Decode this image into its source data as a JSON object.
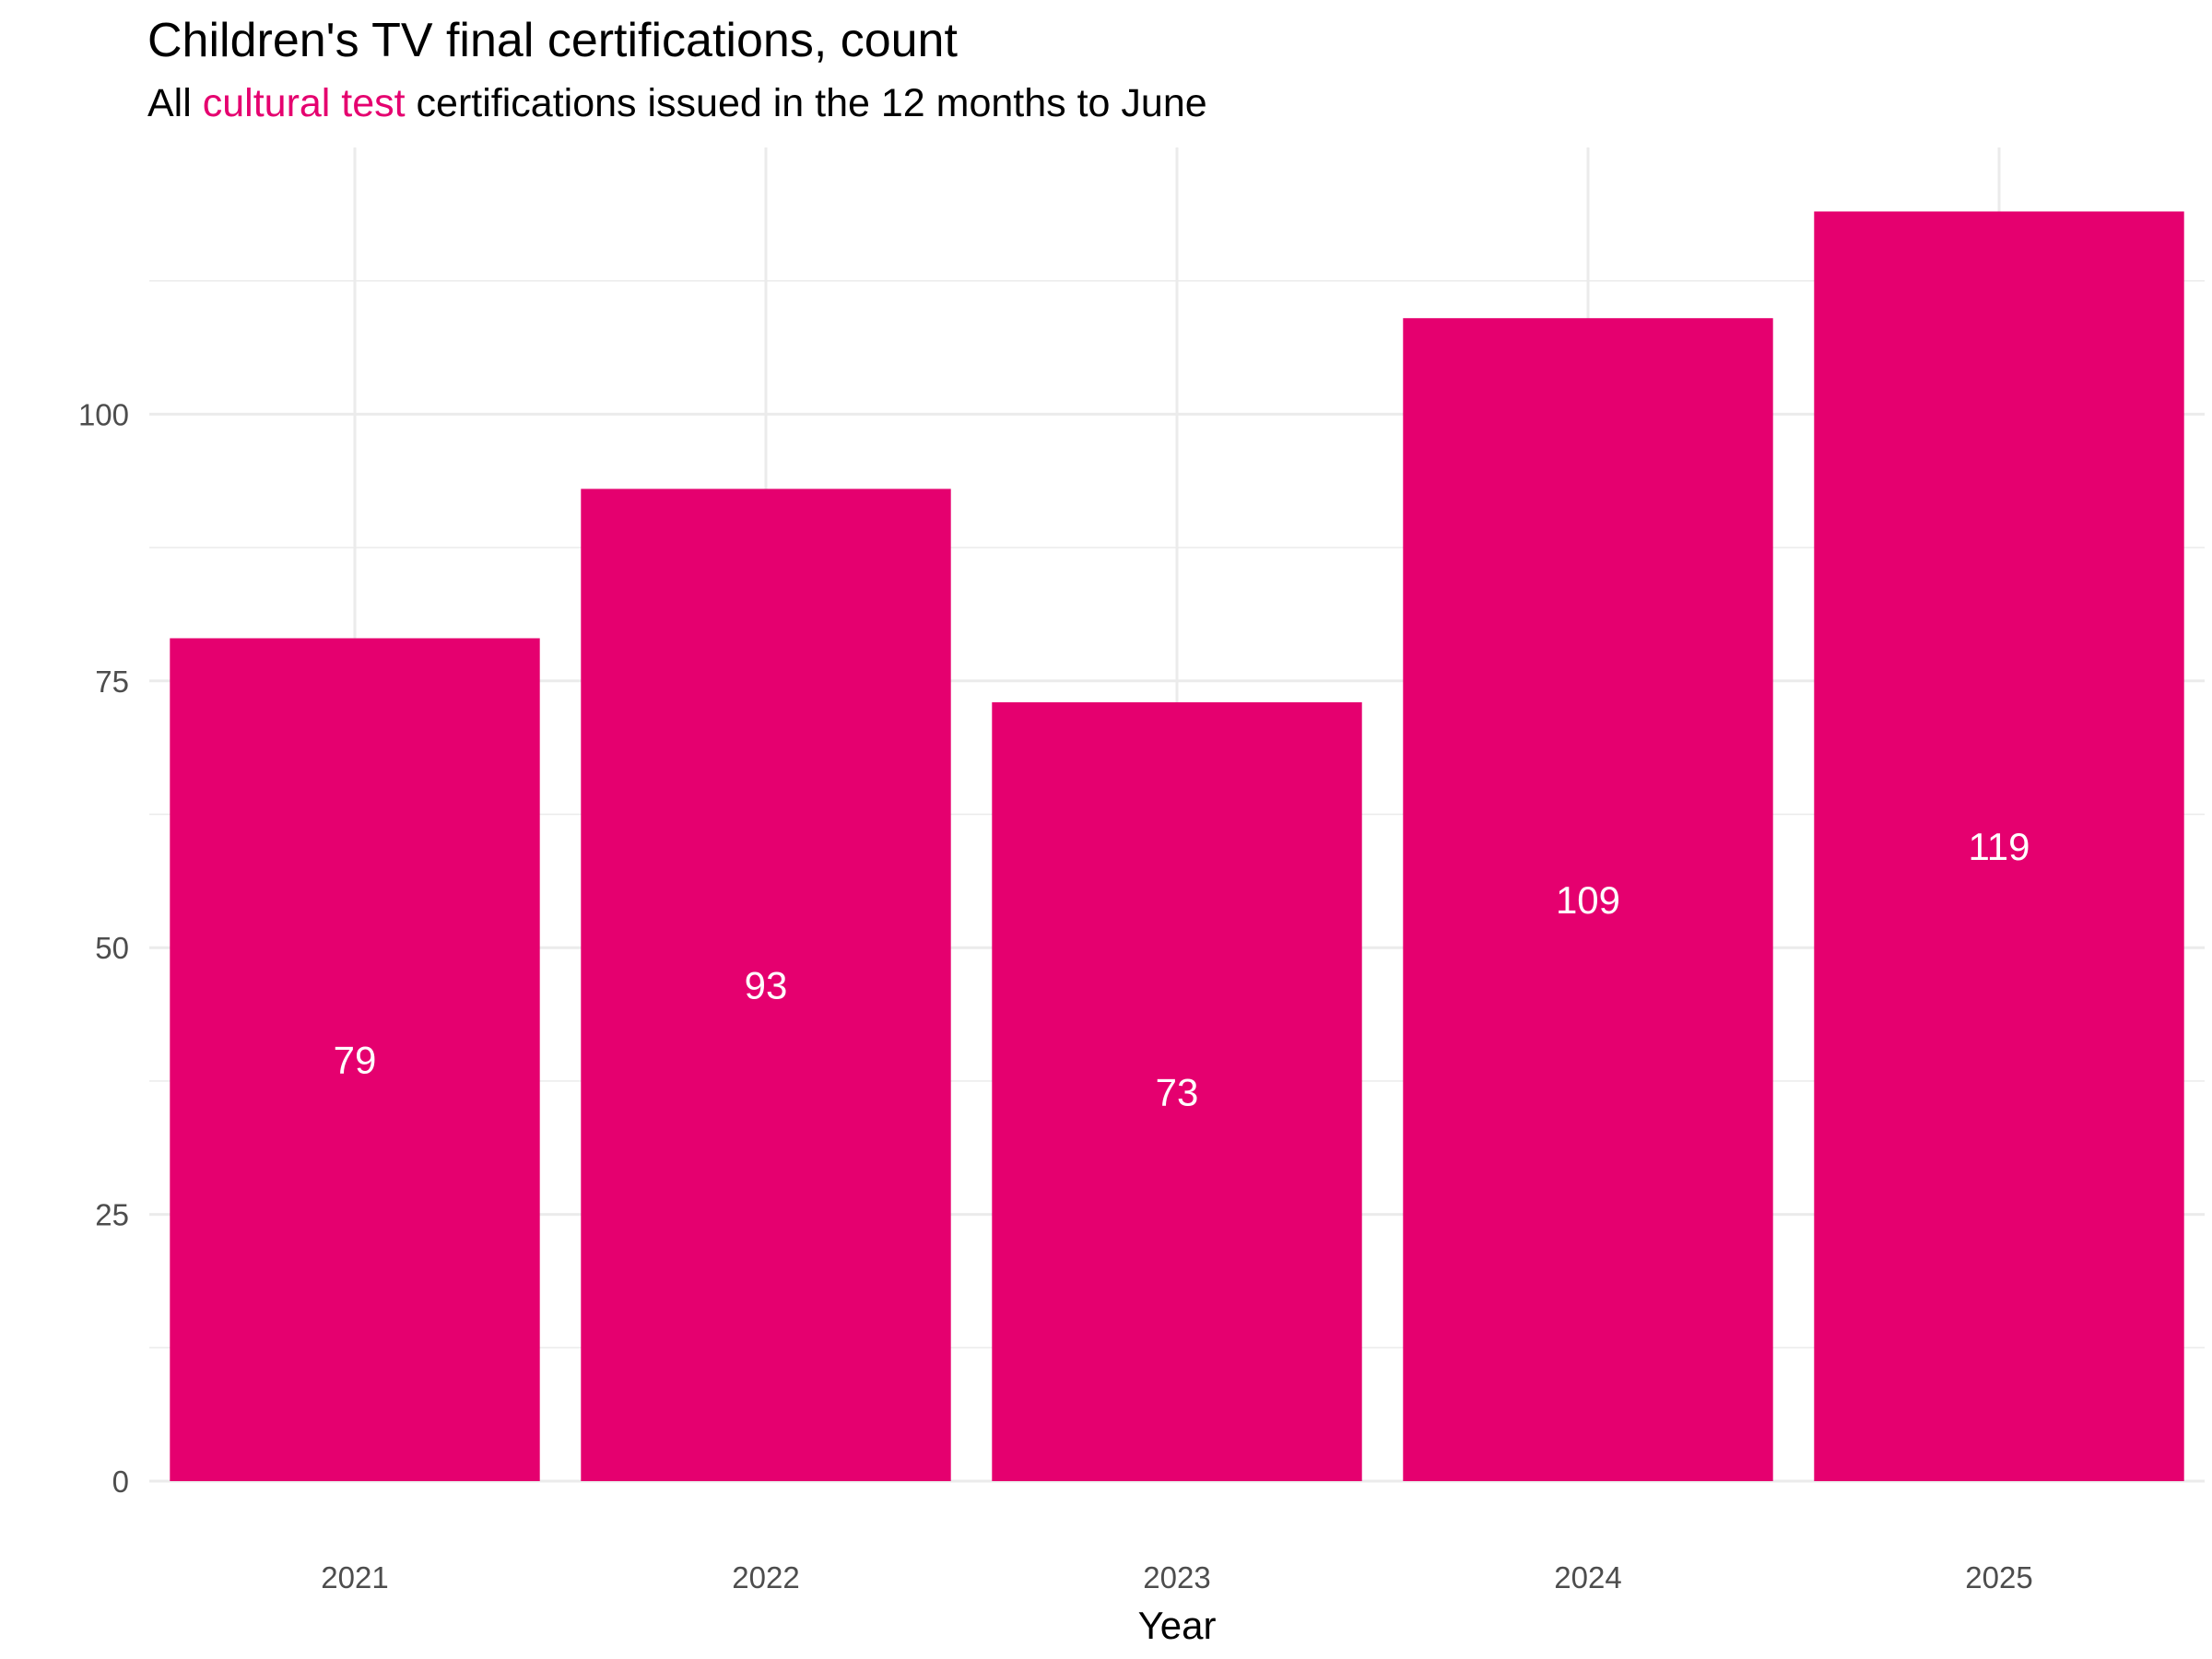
{
  "title": "Children's TV final certifications, count",
  "subtitle": {
    "prefix": "All ",
    "highlight": "cultural test",
    "suffix": " certifications issued in the 12 months to June"
  },
  "colors": {
    "bar": "#E5006F",
    "highlight": "#E5006F",
    "grid": "#ebebeb",
    "bar_label": "#ffffff"
  },
  "chart_data": {
    "type": "bar",
    "categories": [
      "2021",
      "2022",
      "2023",
      "2024",
      "2025"
    ],
    "values": [
      79,
      93,
      73,
      109,
      119
    ],
    "title": "Children's TV final certifications, count",
    "subtitle": "All cultural test certifications issued in the 12 months to June",
    "xlabel": "Year",
    "ylabel": "",
    "ylim": [
      0,
      125
    ],
    "yticks": [
      0,
      25,
      50,
      75,
      100
    ],
    "grid": true,
    "data_labels": true,
    "legend": "none"
  }
}
